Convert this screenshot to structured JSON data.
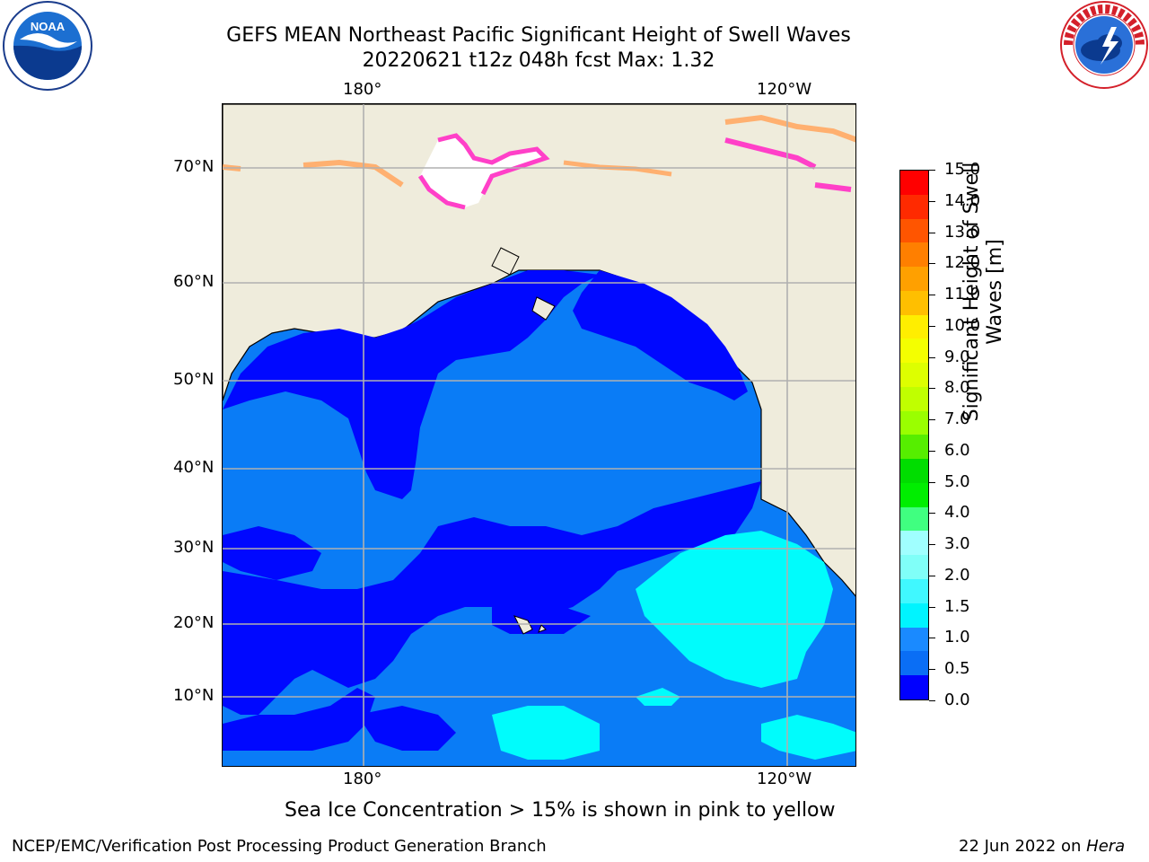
{
  "header": {
    "title_line1": "GEFS MEAN Northeast Pacific Significant Height of Swell Waves",
    "title_line2": "20220621 t12z 048h fcst   Max: 1.32"
  },
  "logos": {
    "left": {
      "name": "noaa-logo",
      "text": "NOAA"
    },
    "right": {
      "name": "nws-logo",
      "text": "NATIONAL WEATHER SERVICE"
    }
  },
  "map": {
    "lon_ticks_top": [
      "180°",
      "120°W"
    ],
    "lon_ticks_bottom": [
      "180°",
      "120°W"
    ],
    "lat_ticks": [
      "70°N",
      "60°N",
      "50°N",
      "40°N",
      "30°N",
      "20°N",
      "10°N"
    ],
    "colors": {
      "land": "#efecdc",
      "swell_0_05": "#0008ff",
      "swell_05_10": "#0a7cf6",
      "swell_10_15": "#00fcfc",
      "ice_pink": "#ff40c8",
      "ice_orange": "#ffb070",
      "grid": "#b0b0b0"
    }
  },
  "colorbar": {
    "label": "Significant Height of Swell Waves [m]",
    "ticks": [
      "15.0",
      "14.0",
      "13.0",
      "12.0",
      "11.0",
      "10.0",
      "9.0",
      "8.0",
      "7.0",
      "6.0",
      "5.0",
      "4.0",
      "3.0",
      "2.0",
      "1.5",
      "1.0",
      "0.5",
      "0.0"
    ],
    "bands": [
      "#ff0000",
      "#ff2a00",
      "#ff5500",
      "#ff7f00",
      "#ffa000",
      "#ffbf00",
      "#ffee00",
      "#f4ff00",
      "#ddff00",
      "#c0ff00",
      "#9aff00",
      "#56ee00",
      "#00dd00",
      "#00ee00",
      "#40ff80",
      "#a0ffff",
      "#80fff8",
      "#40f8ff",
      "#00f4ff",
      "#1a8aff",
      "#0a6ef5",
      "#0000ff"
    ]
  },
  "footer": {
    "note": "Sea Ice Concentration > 15% is shown in pink to yellow",
    "branch": "NCEP/EMC/Verification Post Processing Product Generation Branch",
    "date": "22 Jun 2022 on ",
    "machine": "Hera"
  }
}
